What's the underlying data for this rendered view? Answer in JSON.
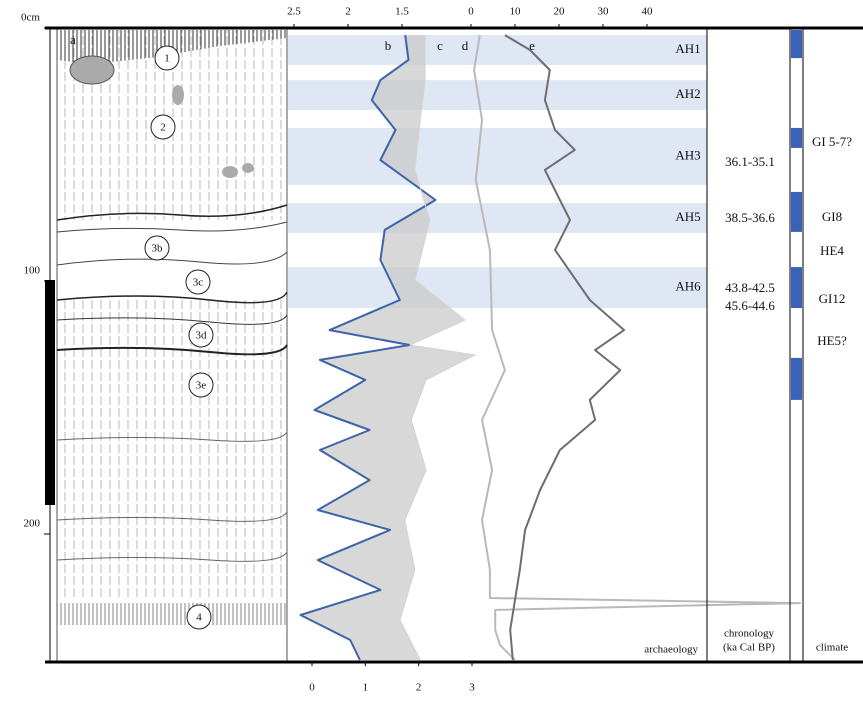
{
  "figure": {
    "panel_labels": [
      "a",
      "b",
      "c",
      "d",
      "e"
    ],
    "layer_labels": [
      "1",
      "2",
      "3b",
      "3c",
      "3d",
      "3e",
      "4"
    ],
    "depth_axis": {
      "lim": [
        0,
        250
      ],
      "ticks": [
        {
          "value": 0,
          "label": "0cm"
        },
        100,
        200
      ]
    },
    "axis_b": {
      "lim": [
        2.5,
        1.5
      ],
      "ticks": [
        2.5,
        2,
        1.5
      ]
    },
    "axis_e": {
      "lim": [
        0,
        40
      ],
      "ticks": [
        0,
        10,
        20,
        30,
        40
      ]
    },
    "axis_c": {
      "lim": [
        0,
        3
      ],
      "ticks": [
        0,
        1,
        2,
        3
      ]
    },
    "curves": [
      {
        "name": "b",
        "axis": "axis_b",
        "color": "#3d64a8",
        "depths": [
          2.8,
          12.6,
          20.6,
          28.5,
          40.3,
          52.2,
          68.0,
          79.8,
          91.7,
          107.5,
          119.4,
          125.3,
          131.2,
          139.1,
          151.0,
          158.9,
          166.8,
          178.7,
          190.5,
          198.4,
          210.3,
          222.1,
          232.0,
          241.9,
          249.8
        ],
        "values": [
          1.47,
          1.44,
          1.7,
          1.78,
          1.56,
          1.7,
          1.19,
          1.66,
          1.7,
          1.52,
          2.17,
          1.43,
          2.26,
          1.84,
          2.31,
          1.8,
          2.26,
          1.8,
          2.28,
          1.61,
          2.28,
          1.7,
          2.44,
          1.98,
          1.89
        ]
      },
      {
        "name": "c",
        "axis": "axis_c",
        "color": "#d4d4d4",
        "depths": [
          2.8,
          20.6,
          36.4,
          56.1,
          75.9,
          99.6,
          115.4,
          125.3,
          129.2,
          139.1,
          154.9,
          174.7,
          194.5,
          214.2,
          234.0,
          249.8
        ],
        "values": [
          2.12,
          2.12,
          2.03,
          1.93,
          2.21,
          1.93,
          2.87,
          1.84,
          3.06,
          2.14,
          1.86,
          2.14,
          1.74,
          1.93,
          1.65,
          2.03
        ]
      },
      {
        "name": "d",
        "axis": "axis_e",
        "color": "#b9b9b9",
        "depths": [
          2.8,
          16.6,
          36.4,
          60.1,
          87.7,
          119.4,
          135.2,
          154.9,
          174.7,
          194.5,
          214.2,
          225.3,
          227.3,
          230.0,
          237.9,
          243.9,
          249.8
        ],
        "values": [
          2.0,
          0.7,
          2.5,
          1.1,
          4.3,
          4.8,
          7.7,
          2.5,
          4.8,
          2.5,
          4.3,
          4.3,
          74.8,
          5.5,
          5.5,
          6.6,
          10.0
        ]
      },
      {
        "name": "e",
        "axis": "axis_e",
        "color": "#6e6e6e",
        "depths": [
          2.8,
          8.7,
          16.6,
          28.5,
          40.3,
          48.2,
          56.1,
          68.0,
          75.9,
          87.7,
          107.5,
          119.4,
          127.3,
          135.2,
          147.0,
          154.9,
          166.8,
          182.6,
          198.4,
          214.2,
          226.1,
          237.9,
          249.8
        ],
        "values": [
          7.7,
          13.4,
          17.9,
          16.8,
          19.1,
          23.6,
          16.8,
          20.2,
          22.5,
          19.1,
          27.0,
          34.8,
          28.2,
          33.9,
          27.0,
          28.2,
          20.2,
          15.7,
          12.3,
          11.1,
          10.0,
          8.9,
          9.5
        ]
      }
    ],
    "archaeology": {
      "title": "archaeology",
      "bands": [
        {
          "label": "AH1",
          "top": 2.8,
          "bottom": 14.6
        },
        {
          "label": "AH2",
          "top": 20.6,
          "bottom": 32.4
        },
        {
          "label": "AH3",
          "top": 39.5,
          "bottom": 62.1
        },
        {
          "label": "AH5",
          "top": 69.2,
          "bottom": 81.0
        },
        {
          "label": "AH6",
          "top": 94.5,
          "bottom": 110.7
        }
      ]
    },
    "chronology": {
      "title": "chronology",
      "subtitle": "(ka Cal BP)",
      "labels": [
        "36.1-35.1",
        "38.5-36.6",
        "43.8-42.5",
        "45.6-44.6"
      ]
    },
    "climate": {
      "title": "climate",
      "color": "#3a62b8",
      "segments": [
        {
          "top": 0.8,
          "bottom": 11.9
        },
        {
          "top": 39.5,
          "bottom": 47.4
        },
        {
          "top": 64.8,
          "bottom": 80.6
        },
        {
          "top": 94.5,
          "bottom": 110.7
        },
        {
          "top": 130.4,
          "bottom": 147.0
        }
      ],
      "labels": [
        "GI 5-7?",
        "GI8",
        "HE4",
        "GI12",
        "HE5?"
      ]
    }
  }
}
